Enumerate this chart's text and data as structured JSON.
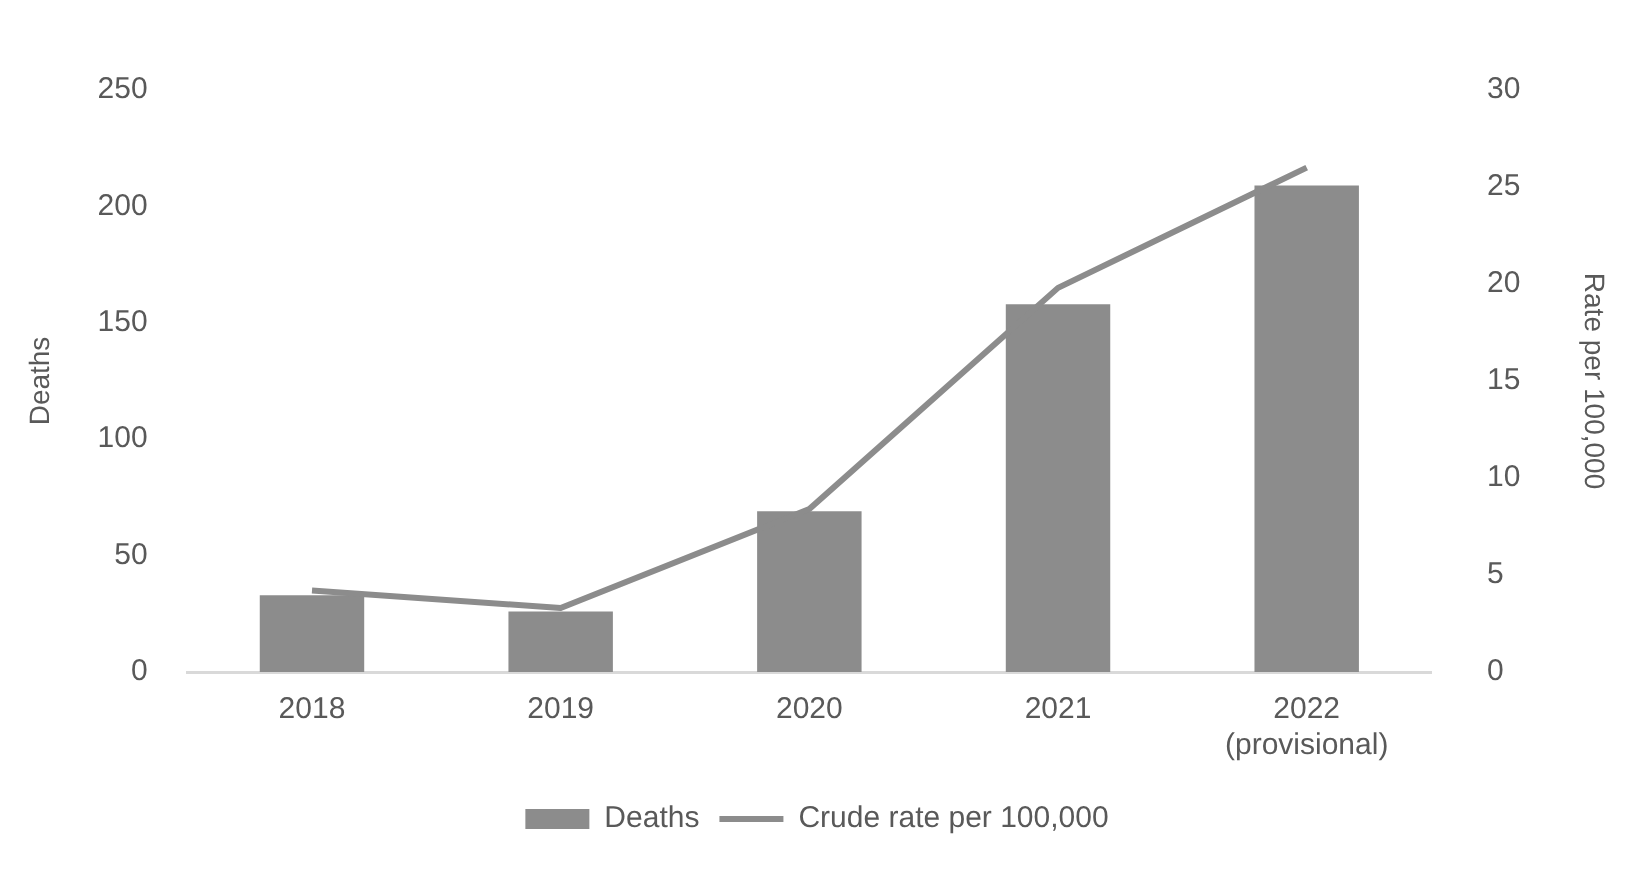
{
  "chart_data": {
    "type": "bar",
    "categories": [
      "2018",
      "2019",
      "2020",
      "2021",
      "2022 (provisional)"
    ],
    "series": [
      {
        "name": "Deaths",
        "color": "#8c8c8c",
        "values": [
          33,
          26,
          69,
          158,
          209
        ]
      },
      {
        "name": "Crude rate per 100,000",
        "type": "line",
        "axis": "y2",
        "color": "#8c8c8c",
        "values": [
          4.2,
          3.3,
          8.4,
          19.8,
          26.0
        ]
      }
    ],
    "ylabel": "Deaths",
    "y2label": "Rate per 100,000",
    "ylim": [
      0,
      250
    ],
    "yticks": [
      0,
      50,
      100,
      150,
      200,
      250
    ],
    "y2lim": [
      0,
      30
    ],
    "y2ticks": [
      0,
      5,
      10,
      15,
      20,
      25,
      30
    ],
    "grid": false,
    "legend": "bottom",
    "marker": "none",
    "line_style": "solid"
  }
}
